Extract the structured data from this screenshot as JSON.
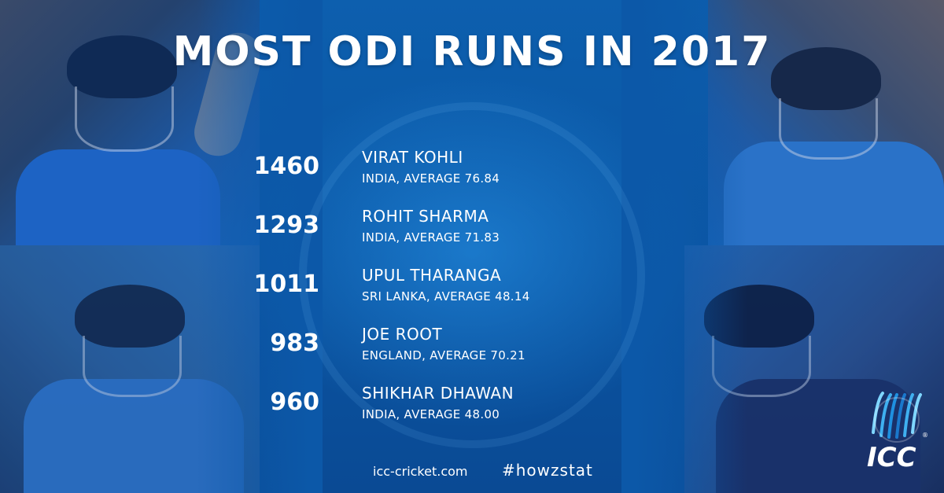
{
  "title": "MOST ODI RUNS IN 2017",
  "players": [
    {
      "runs": "1460",
      "name": "VIRAT KOHLI",
      "detail": "INDIA, AVERAGE 76.84"
    },
    {
      "runs": "1293",
      "name": "ROHIT SHARMA",
      "detail": "INDIA, AVERAGE 71.83"
    },
    {
      "runs": "1011",
      "name": "UPUL THARANGA",
      "detail": "SRI LANKA, AVERAGE 48.14"
    },
    {
      "runs": "983",
      "name": "JOE ROOT",
      "detail": "ENGLAND, AVERAGE 70.21"
    },
    {
      "runs": "960",
      "name": "SHIKHAR DHAWAN",
      "detail": "INDIA, AVERAGE 48.00"
    }
  ],
  "footer": {
    "website": "icc-cricket.com",
    "hashtag": "#howzstat"
  },
  "logo": {
    "text": "ICC",
    "icon": "icc-logo-icon"
  },
  "colors": {
    "background": "#0a55a3",
    "text": "#ffffff"
  }
}
